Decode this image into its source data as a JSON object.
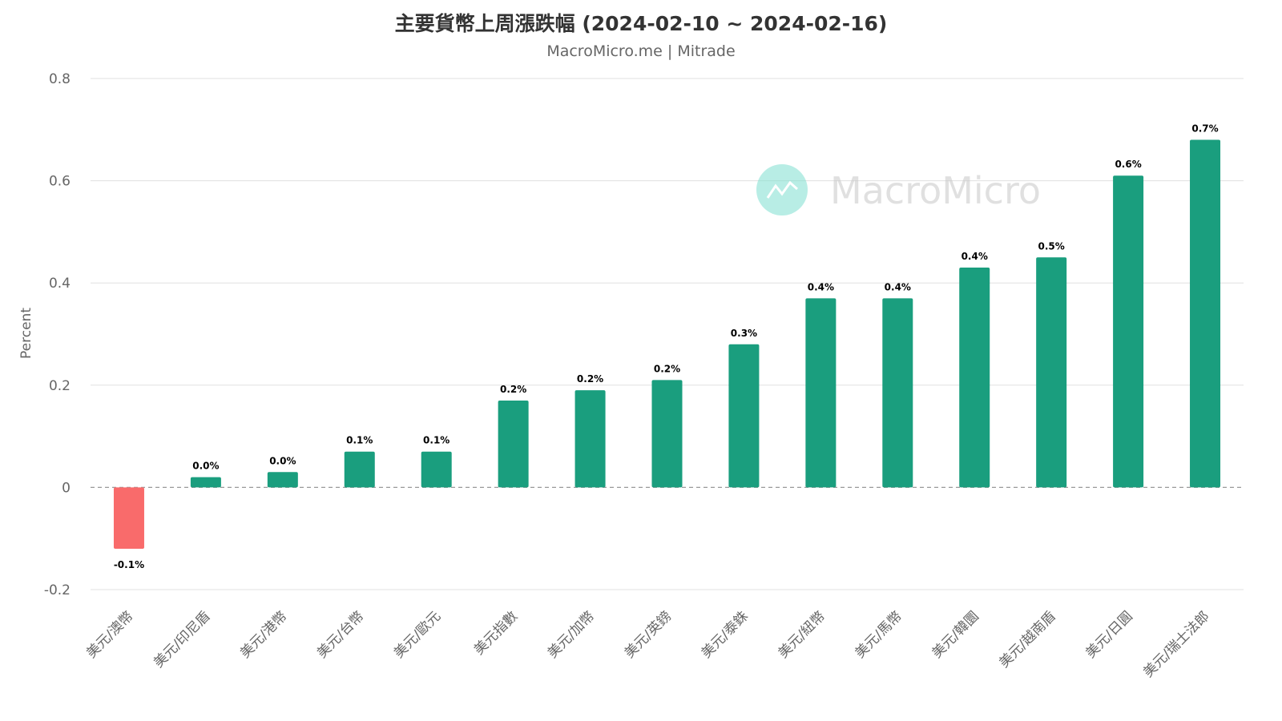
{
  "chart_data": {
    "type": "bar",
    "title": "主要貨幣上周漲跌幅 (2024-02-10 ~ 2024-02-16)",
    "subtitle": "MacroMicro.me | Mitrade",
    "ylabel": "Percent",
    "xlabel": "",
    "ylim": [
      -0.2,
      0.8
    ],
    "yticks": [
      -0.2,
      0,
      0.2,
      0.4,
      0.6,
      0.8
    ],
    "ytick_labels": [
      "-0.2",
      "0",
      "0.2",
      "0.4",
      "0.6",
      "0.8"
    ],
    "grid": true,
    "legend": "none",
    "categories": [
      "美元/澳幣",
      "美元/印尼盾",
      "美元/港幣",
      "美元/台幣",
      "美元/歐元",
      "美元指數",
      "美元/加幣",
      "美元/英鎊",
      "美元/泰銖",
      "美元/紐幣",
      "美元/馬幣",
      "美元/韓圜",
      "美元/越南盾",
      "美元/日圓",
      "美元/瑞士法郎"
    ],
    "values": [
      -0.12,
      0.02,
      0.03,
      0.07,
      0.07,
      0.17,
      0.19,
      0.21,
      0.28,
      0.37,
      0.37,
      0.43,
      0.45,
      0.61,
      0.68
    ],
    "data_labels": [
      "-0.1%",
      "0.0%",
      "0.0%",
      "0.1%",
      "0.1%",
      "0.2%",
      "0.2%",
      "0.2%",
      "0.3%",
      "0.4%",
      "0.4%",
      "0.4%",
      "0.5%",
      "0.6%",
      "0.7%"
    ],
    "colors": {
      "positive": "#1a9e7e",
      "negative": "#f96b6b",
      "grid": "#e0e0e0",
      "zero_line": "#999999"
    }
  },
  "watermark": {
    "text": "MacroMicro",
    "icon": "macromicro-logo-icon",
    "color": "#7fe0d0"
  }
}
